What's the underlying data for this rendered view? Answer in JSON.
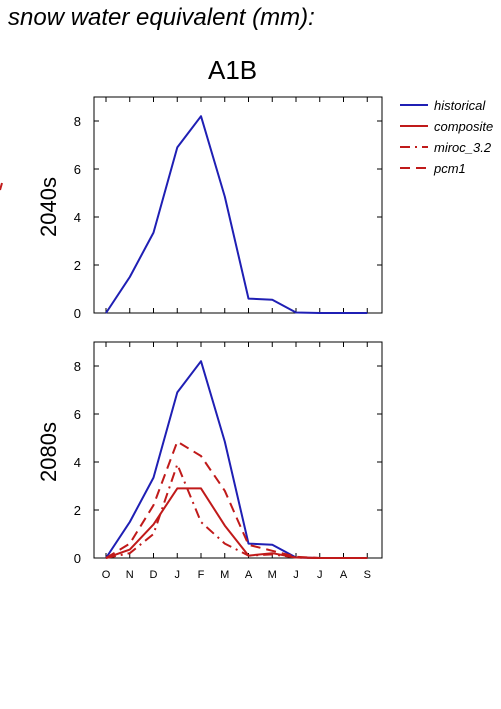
{
  "title": "snow water equivalent (mm):",
  "scenario": "A1B",
  "colors": {
    "historical": "#1f1fb4",
    "projection": "#c01a1a"
  },
  "legend": [
    {
      "name": "historical",
      "dash": "solid",
      "color": "#1f1fb4"
    },
    {
      "name": "composite",
      "dash": "solid",
      "color": "#c01a1a"
    },
    {
      "name": "miroc_3.2",
      "dash": "dashdot",
      "color": "#c01a1a"
    },
    {
      "name": "pcm1",
      "dash": "dash",
      "color": "#c01a1a"
    }
  ],
  "chart_data": [
    {
      "type": "line",
      "panel_label": "2040s",
      "categories": [
        "O",
        "N",
        "D",
        "J",
        "F",
        "M",
        "A",
        "M",
        "J",
        "J",
        "A",
        "S"
      ],
      "ylim": [
        0,
        9
      ],
      "yticks": [
        0,
        2,
        4,
        6,
        8
      ],
      "show_xtick_labels": false,
      "series": [
        {
          "name": "historical",
          "values": [
            0,
            1.5,
            3.35,
            6.9,
            8.2,
            4.85,
            0.6,
            0.55,
            0.02,
            0,
            0,
            0
          ]
        }
      ]
    },
    {
      "type": "line",
      "panel_label": "2080s",
      "categories": [
        "O",
        "N",
        "D",
        "J",
        "F",
        "M",
        "A",
        "M",
        "J",
        "J",
        "A",
        "S"
      ],
      "ylim": [
        0,
        9
      ],
      "yticks": [
        0,
        2,
        4,
        6,
        8
      ],
      "show_xtick_labels": true,
      "series": [
        {
          "name": "historical",
          "values": [
            0,
            1.5,
            3.35,
            6.9,
            8.2,
            4.85,
            0.6,
            0.55,
            0.02,
            0,
            0,
            0
          ]
        },
        {
          "name": "composite",
          "values": [
            0,
            0.35,
            1.4,
            2.9,
            2.9,
            1.35,
            0.1,
            0.2,
            0.02,
            0,
            0,
            0
          ]
        },
        {
          "name": "miroc_3.2",
          "values": [
            0,
            0.2,
            1.0,
            3.9,
            1.5,
            0.6,
            0.1,
            0.15,
            0.02,
            0,
            0,
            0
          ]
        },
        {
          "name": "pcm1",
          "values": [
            0,
            0.6,
            2.2,
            4.85,
            4.25,
            2.8,
            0.55,
            0.3,
            0.05,
            0,
            0,
            0
          ]
        }
      ]
    }
  ]
}
